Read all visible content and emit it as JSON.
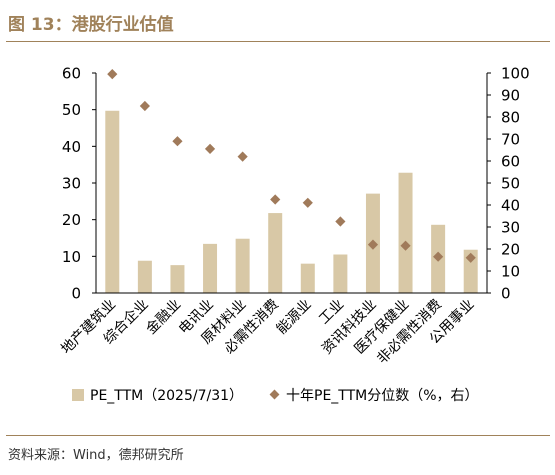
{
  "figure": {
    "title": "图 13：港股行业估值",
    "source": "资料来源：Wind，德邦研究所"
  },
  "chart_data": {
    "type": "bar",
    "categories": [
      "地产建筑业",
      "综合企业",
      "金融业",
      "电讯业",
      "原材料业",
      "必需性消费",
      "能源业",
      "工业",
      "资讯科技业",
      "医疗保健业",
      "非必需性消费",
      "公用事业"
    ],
    "series": [
      {
        "name": "PE_TTM（2025/7/31）",
        "type": "bar",
        "axis": "left",
        "color": "#d8c8a6",
        "values": [
          49.7,
          8.8,
          7.6,
          13.4,
          14.8,
          21.8,
          8.0,
          10.5,
          27.1,
          32.8,
          18.6,
          11.8
        ]
      },
      {
        "name": "十年PE_TTM分位数（%，右）",
        "type": "scatter",
        "axis": "right",
        "color": "#a07a5a",
        "values": [
          99.5,
          85.0,
          69.0,
          65.5,
          62.0,
          42.5,
          41.0,
          32.5,
          22.0,
          21.5,
          16.5,
          16.0
        ]
      }
    ],
    "y_left": {
      "min": 0,
      "max": 60,
      "ticks": [
        0,
        10,
        20,
        30,
        40,
        50,
        60
      ]
    },
    "y_right": {
      "min": 0,
      "max": 100,
      "ticks": [
        0,
        10,
        20,
        30,
        40,
        50,
        60,
        70,
        80,
        90,
        100
      ]
    },
    "grid": false,
    "legend": "bottom"
  }
}
